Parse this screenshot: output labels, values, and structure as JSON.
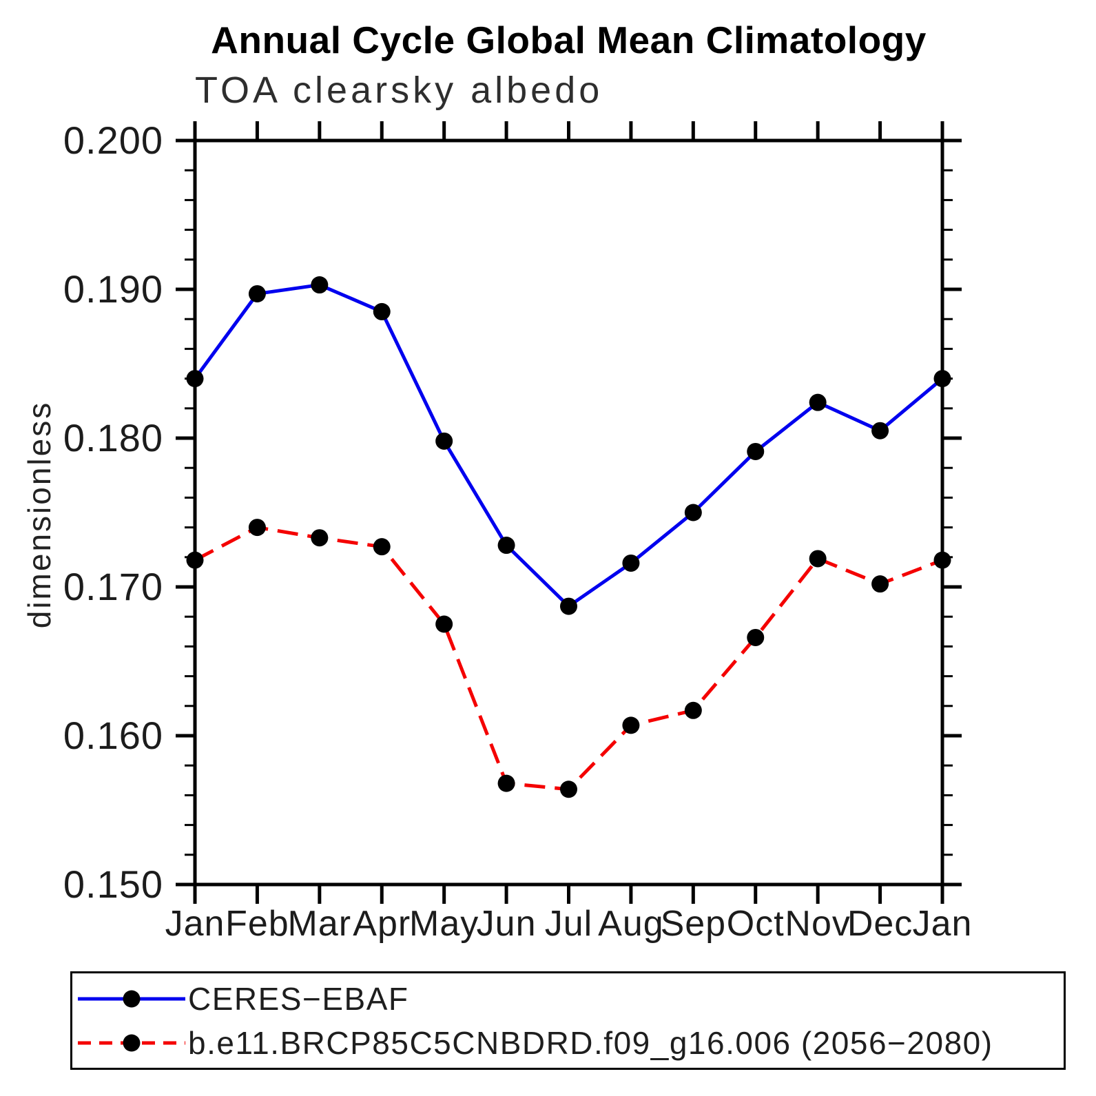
{
  "title": "Annual Cycle Global Mean Climatology",
  "subtitle": "TOA clearsky albedo",
  "ylabel": "dimensionless",
  "legend": {
    "items": [
      {
        "label": "CERES−EBAF",
        "color": "#0000ee",
        "style": "solid"
      },
      {
        "label": "b.e11.BRCP85C5CNBDRD.f09_g16.006 (2056−2080)",
        "color": "#f40000",
        "style": "dashed"
      }
    ]
  },
  "chart_data": {
    "type": "line",
    "x_categories": [
      "Jan",
      "Feb",
      "Mar",
      "Apr",
      "May",
      "Jun",
      "Jul",
      "Aug",
      "Sep",
      "Oct",
      "Nov",
      "Dec",
      "Jan"
    ],
    "ylim": [
      0.15,
      0.2
    ],
    "ytick_step": 0.01,
    "yminor_step": 0.002,
    "yticks": [
      "0.200",
      "0.190",
      "0.180",
      "0.170",
      "0.160",
      "0.150"
    ],
    "grid": false,
    "legend_position": "bottom",
    "marker": {
      "shape": "circle",
      "color": "#000000",
      "radius": 12.5
    },
    "series": [
      {
        "name": "CERES−EBAF",
        "color": "#0000ee",
        "dash": "solid",
        "values": [
          0.184,
          0.1897,
          0.1903,
          0.1885,
          0.1798,
          0.1728,
          0.1687,
          0.1716,
          0.175,
          0.1791,
          0.1824,
          0.1805,
          0.184
        ]
      },
      {
        "name": "b.e11.BRCP85C5CNBDRD.f09_g16.006 (2056−2080)",
        "color": "#f40000",
        "dash": "dashed",
        "values": [
          0.1718,
          0.174,
          0.1733,
          0.1727,
          0.1675,
          0.1568,
          0.1564,
          0.1607,
          0.1617,
          0.1666,
          0.1719,
          0.1702,
          0.1718
        ]
      }
    ]
  }
}
